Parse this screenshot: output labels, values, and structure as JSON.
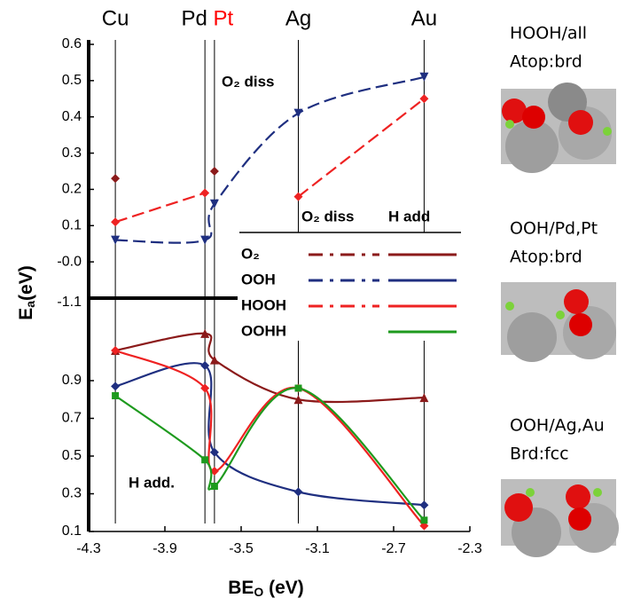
{
  "chart_data": [
    {
      "type": "line",
      "x": [
        -4.16,
        -3.69,
        -3.64,
        -3.2,
        -2.54
      ],
      "x_labels": [
        "Cu",
        "Pd",
        "Pt",
        "Ag",
        "Au"
      ],
      "x_label_colors": [
        "#000000",
        "#000000",
        "#ff0000",
        "#000000",
        "#000000"
      ],
      "xlim": [
        -4.3,
        -2.3
      ],
      "ylim": [
        -0.1,
        0.6
      ],
      "yticks": [
        {
          "value": 0,
          "label": "-0.0"
        },
        0.1,
        0.2,
        0.3,
        0.4,
        0.5,
        0.6
      ],
      "dashed": true,
      "annotation": "O₂ diss",
      "break_label": "-1.1",
      "series": [
        {
          "color": "#8b1a1a",
          "marker": "diamond",
          "values": [
            0.23,
            null,
            0.25,
            null,
            null
          ]
        },
        {
          "color": "#1f2f80",
          "marker": "tri-down",
          "values": [
            0.06,
            0.06,
            0.16,
            0.41,
            0.51
          ]
        },
        {
          "color": "#ee2222",
          "marker": "diamond",
          "values": [
            0.11,
            0.19,
            null,
            0.18,
            0.45
          ]
        }
      ]
    },
    {
      "type": "line",
      "x": [
        -4.16,
        -3.69,
        -3.64,
        -3.2,
        -2.54
      ],
      "xlim": [
        -4.3,
        -2.3
      ],
      "ylim": [
        0.1,
        1.3
      ],
      "xticks": [
        -4.3,
        -3.9,
        -3.5,
        -3.1,
        -2.7,
        -2.3
      ],
      "yticks": [
        0.1,
        0.3,
        0.5,
        0.7,
        0.9
      ],
      "dashed": false,
      "xlabel": "BE",
      "xlabel_sub": "O",
      "xlabel_unit": " (eV)",
      "ylabel": "E",
      "ylabel_sub": "a",
      "ylabel_unit": "(eV)",
      "annotation": "H add.",
      "legend_headers": [
        "O₂ diss",
        "H add"
      ],
      "series": [
        {
          "name": "O₂",
          "color": "#8b1a1a",
          "marker": "tri-up",
          "values": [
            1.06,
            1.15,
            1.01,
            0.8,
            0.81
          ]
        },
        {
          "name": "OOH",
          "color": "#1f2f80",
          "marker": "diamond",
          "values": [
            0.87,
            0.98,
            0.52,
            0.31,
            0.24
          ]
        },
        {
          "name": "HOOH",
          "color": "#ee2222",
          "marker": "diamond",
          "values": [
            1.06,
            0.86,
            0.42,
            0.86,
            0.13
          ]
        },
        {
          "name": "OOHH",
          "color": "#1e9a1e",
          "marker": "square",
          "values": [
            0.82,
            0.48,
            0.34,
            0.86,
            0.16
          ]
        }
      ]
    }
  ],
  "side_panels": [
    [
      "HOOH/all",
      "Atop:brd"
    ],
    [
      "OOH/Pd,Pt",
      "Atop:brd"
    ],
    [
      "OOH/Ag,Au",
      "Brd:fcc"
    ]
  ]
}
